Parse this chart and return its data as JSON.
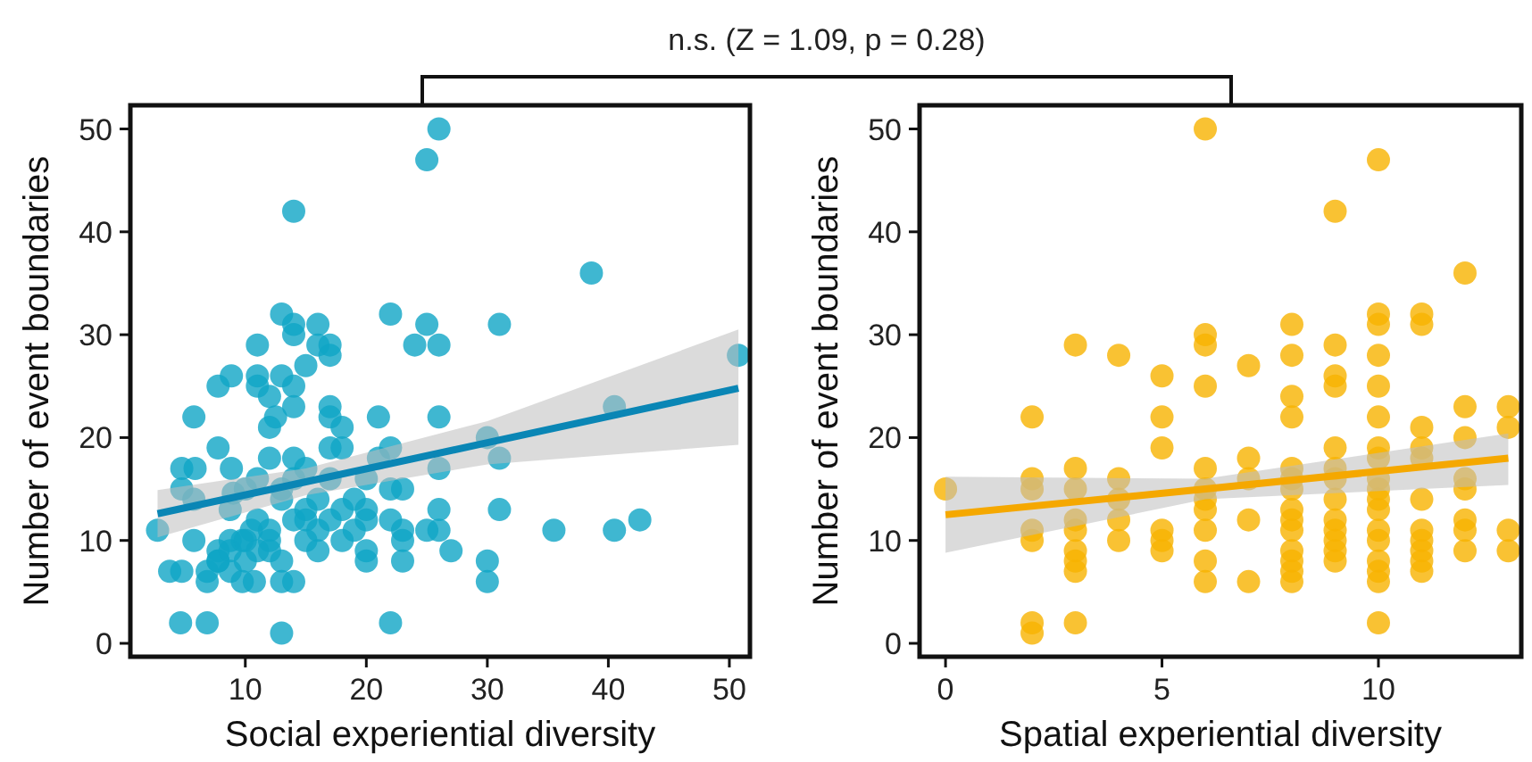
{
  "chart_data": [
    {
      "type": "scatter",
      "xlabel": "Social experiential diversity",
      "ylabel": "Number of event boundaries",
      "xlim": [
        0.5,
        51.7
      ],
      "xticks": [
        10,
        20,
        30,
        40,
        50
      ],
      "ylim": [
        -1.3,
        52.3
      ],
      "yticks": [
        0,
        10,
        20,
        30,
        40,
        50
      ],
      "annotations": [
        "n.s. (Z = 1.09, p = 0.28)"
      ],
      "series": [
        {
          "marker": "circle",
          "color": "#0fa5c6",
          "x": [
            2.75,
            3.75,
            4.75,
            4.65,
            6.85,
            4.75,
            5.85,
            4.75,
            5.75,
            5.75,
            5.75,
            6.85,
            6.85,
            7.75,
            8.85,
            7.75,
            8.85,
            7.75,
            7.75,
            11,
            11,
            11,
            12,
            12,
            12.5,
            13,
            14,
            14,
            14,
            13,
            14,
            14,
            15,
            16,
            16,
            17,
            17,
            12,
            14,
            15,
            13,
            17,
            17,
            18,
            18,
            17,
            21,
            21,
            22,
            22,
            22,
            22,
            23,
            23,
            23,
            23,
            22,
            24,
            25,
            26,
            25,
            26,
            26,
            26,
            26,
            25,
            26,
            27,
            30,
            31,
            31,
            31,
            30,
            30,
            35.5,
            38.6,
            40.5,
            40.5,
            42.6,
            50.75,
            7.75,
            8.75,
            8.75,
            9.75,
            8.75,
            9.75,
            10.75,
            10,
            10.5,
            11,
            12,
            12,
            13,
            13,
            14,
            11,
            10,
            9,
            8.75,
            13,
            14,
            13,
            15,
            15,
            16,
            16,
            16,
            17,
            17,
            18,
            18,
            19,
            19,
            20,
            20,
            20,
            20,
            20,
            15,
            14,
            12,
            11,
            10
          ],
          "values": [
            11,
            7,
            7,
            2,
            2,
            17,
            17,
            15,
            14,
            22,
            10,
            6,
            7,
            25,
            26,
            19,
            17,
            9,
            8,
            29,
            26,
            25,
            24,
            21,
            22,
            32,
            31,
            30,
            42,
            26,
            25,
            23,
            27,
            31,
            29,
            29,
            28,
            18,
            18,
            17,
            1,
            23,
            22,
            21,
            19,
            19,
            22,
            18,
            19,
            32,
            12,
            15,
            15,
            11,
            10,
            8,
            2,
            29,
            31,
            29,
            47,
            50,
            22,
            17,
            13,
            11,
            11,
            9,
            20,
            18,
            31,
            13,
            8,
            6,
            11,
            36,
            11,
            23,
            12,
            28,
            8,
            9,
            10,
            10,
            7,
            6,
            6,
            8,
            11,
            12,
            11,
            9,
            8,
            6,
            6,
            16,
            15,
            14.6,
            13,
            15,
            16,
            14,
            12,
            10,
            11,
            9,
            14,
            16,
            12,
            13,
            10,
            14,
            11,
            13,
            12,
            9,
            8,
            16,
            13,
            12,
            10,
            9,
            10
          ]
        },
        {
          "type": "line",
          "color": "#0a86b5",
          "x": [
            2.75,
            15,
            30,
            50.75
          ],
          "values": [
            12.6,
            15.7,
            19.5,
            24.8
          ],
          "lower": [
            10.3,
            14.4,
            17.4,
            19.3
          ],
          "upper": [
            14.9,
            17.0,
            21.6,
            30.5
          ]
        }
      ]
    },
    {
      "type": "scatter",
      "xlabel": "Spatial experiential diversity",
      "ylabel": "Number of event boundaries",
      "xlim": [
        -0.6,
        13.3
      ],
      "xticks": [
        0,
        5,
        10
      ],
      "ylim": [
        -1.3,
        52.3
      ],
      "yticks": [
        0,
        10,
        20,
        30,
        40,
        50
      ],
      "series": [
        {
          "marker": "circle",
          "color": "#f8b300",
          "x": [
            0,
            2,
            2,
            2,
            2,
            2,
            2,
            2,
            3,
            3,
            3,
            3,
            3,
            3,
            3,
            3,
            3,
            4,
            4,
            4,
            4,
            4,
            5,
            5,
            5,
            5,
            5,
            5,
            6,
            6,
            6,
            6,
            6,
            6,
            6,
            6,
            6,
            6,
            6,
            7,
            7,
            7,
            7,
            7,
            8,
            8,
            8,
            8,
            8,
            8,
            8,
            8,
            8,
            8,
            8,
            8,
            8,
            8,
            9,
            9,
            9,
            9,
            9,
            9,
            9,
            9,
            9,
            9,
            9,
            9,
            9,
            10,
            10,
            10,
            10,
            10,
            10,
            10,
            10,
            10,
            10,
            10,
            10,
            10,
            10,
            10,
            10,
            10,
            10,
            11,
            11,
            11,
            11,
            11,
            11,
            11,
            11,
            11,
            11,
            11,
            12,
            12,
            12,
            12,
            12,
            12,
            12,
            12,
            13,
            13,
            13,
            13
          ],
          "values": [
            15,
            22,
            16,
            15,
            11,
            10,
            2,
            1,
            29,
            17,
            15,
            12,
            11,
            9,
            8,
            7,
            2,
            28,
            16,
            14,
            12,
            10,
            26,
            22,
            19,
            11,
            10,
            9,
            50,
            30,
            29,
            25,
            17,
            15,
            14,
            13,
            11,
            8,
            6,
            27,
            18,
            16,
            12,
            6,
            31,
            28,
            24,
            22,
            17,
            16,
            15,
            13,
            12,
            11,
            9,
            8,
            7,
            6,
            42,
            29,
            26,
            25,
            19,
            17,
            16,
            14,
            12,
            11,
            10,
            9,
            8,
            47,
            32,
            31,
            28,
            25,
            22,
            19,
            18,
            16,
            15,
            14,
            13,
            11,
            10,
            8,
            7,
            6,
            2,
            32,
            31,
            21,
            19,
            18,
            14,
            11,
            10,
            9,
            8,
            7,
            36,
            23,
            20,
            16,
            15,
            12,
            11,
            9,
            23,
            21,
            11,
            9
          ]
        },
        {
          "type": "line",
          "color": "#f5a800",
          "x": [
            0,
            6,
            13
          ],
          "values": [
            12.5,
            15.0,
            18.0
          ],
          "lower": [
            8.8,
            14.0,
            15.4
          ],
          "upper": [
            16.2,
            16.0,
            20.4
          ]
        }
      ]
    }
  ]
}
